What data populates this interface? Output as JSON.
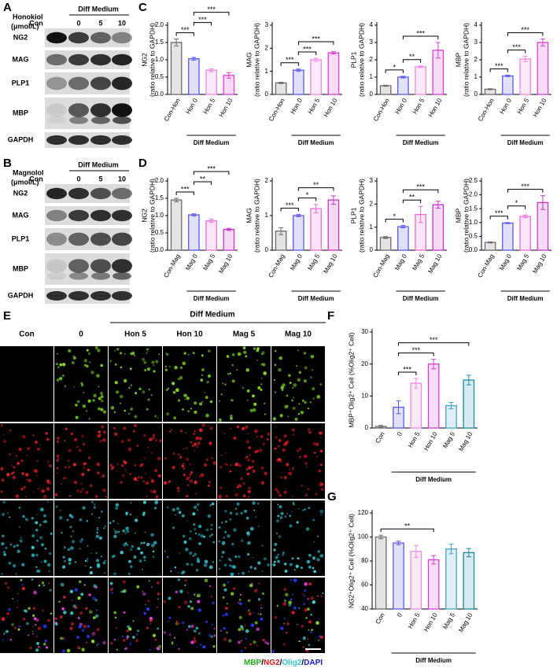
{
  "panel_labels": [
    "A",
    "B",
    "C",
    "D",
    "E",
    "F",
    "G"
  ],
  "blots": [
    {
      "agent": "Honokiol",
      "unit": "(μmol/L)",
      "group_label": "Diff Medium",
      "lanes": [
        "Con",
        "0",
        "5",
        "10"
      ],
      "rows": [
        "NG2",
        "MAG",
        "PLP1",
        "MBP",
        "GAPDH"
      ]
    },
    {
      "agent": "Magnolol",
      "unit": "(μmol/L)",
      "group_label": "Diff Medium",
      "lanes": [
        "Con",
        "0",
        "5",
        "10"
      ],
      "rows": [
        "NG2",
        "MAG",
        "PLP1",
        "MBP",
        "GAPDH"
      ]
    }
  ],
  "microscopy": {
    "group_label": "Diff Medium",
    "columns": [
      "Con",
      "0",
      "Hon 5",
      "Hon 10",
      "Mag 5",
      "Mag 10"
    ],
    "legend": [
      {
        "text": "MBP",
        "color": "#22b022"
      },
      {
        "text": "NG2",
        "color": "#e01b1b"
      },
      {
        "text": "Olig2",
        "color": "#2cc6cc"
      },
      {
        "text": "DAPI",
        "color": "#1a1ad0"
      }
    ],
    "legend_separator": "/"
  },
  "chart_data": [
    {
      "type": "bar",
      "ylabel": [
        "NG2",
        "(ratio relative to GAPDH)"
      ],
      "categories": [
        "Con-Hon",
        "Hon 0",
        "Hon 5",
        "Hon 10"
      ],
      "values": [
        1.5,
        1.03,
        0.7,
        0.55
      ],
      "errors": [
        0.1,
        0.04,
        0.04,
        0.08
      ],
      "colors": [
        "#6b6b6b",
        "#5b5bf0",
        "#f08ae0",
        "#d93fd6"
      ],
      "ylim": [
        0,
        2
      ],
      "yticks": [
        {
          "value": 0,
          "label": "0.0"
        },
        0.5,
        {
          "value": 1,
          "label": "1.0"
        },
        1.5,
        {
          "value": 2,
          "label": "2.0"
        }
      ],
      "group_label": "Diff Medium",
      "group_span": [
        1,
        3
      ],
      "significance": [
        {
          "pair": [
            0,
            1
          ],
          "label": "***"
        },
        {
          "pair": [
            1,
            2
          ],
          "label": "***"
        },
        {
          "pair": [
            1,
            3
          ],
          "label": "***"
        }
      ]
    },
    {
      "type": "bar",
      "ylabel": [
        "MAG",
        "(ratio relative to GAPDH)"
      ],
      "categories": [
        "Con-Hon",
        "Hon 0",
        "Hon 5",
        "Hon 10"
      ],
      "values": [
        0.5,
        1.05,
        1.5,
        1.8
      ],
      "errors": [
        0.03,
        0.05,
        0.07,
        0.05
      ],
      "colors": [
        "#6b6b6b",
        "#5b5bf0",
        "#f08ae0",
        "#d93fd6"
      ],
      "ylim": [
        0,
        3
      ],
      "yticks": [
        0,
        1,
        2,
        3
      ],
      "group_label": "Diff Medium",
      "group_span": [
        1,
        3
      ],
      "significance": [
        {
          "pair": [
            0,
            1
          ],
          "label": "***"
        },
        {
          "pair": [
            1,
            2
          ],
          "label": "***"
        },
        {
          "pair": [
            1,
            3
          ],
          "label": "***"
        }
      ]
    },
    {
      "type": "bar",
      "ylabel": [
        "PLP1",
        "(ratio relative to GAPDH)"
      ],
      "categories": [
        "Con-Hon",
        "Hon 0",
        "Hon 5",
        "Hon 10"
      ],
      "values": [
        0.5,
        1.0,
        1.6,
        2.55
      ],
      "errors": [
        0.03,
        0.05,
        0.05,
        0.45
      ],
      "colors": [
        "#6b6b6b",
        "#5b5bf0",
        "#f08ae0",
        "#d93fd6"
      ],
      "ylim": [
        0,
        4
      ],
      "yticks": [
        0,
        1,
        2,
        3,
        4
      ],
      "group_label": "Diff Medium",
      "group_span": [
        1,
        3
      ],
      "significance": [
        {
          "pair": [
            0,
            1
          ],
          "label": "*"
        },
        {
          "pair": [
            1,
            2
          ],
          "label": "**"
        },
        {
          "pair": [
            1,
            3
          ],
          "label": "***"
        }
      ]
    },
    {
      "type": "bar",
      "ylabel": [
        "MBP",
        "(ratio relative to GAPDH)"
      ],
      "categories": [
        "Con-Hon",
        "Hon 0",
        "Hon 5",
        "Hon 10"
      ],
      "values": [
        0.3,
        1.07,
        2.05,
        3.0
      ],
      "errors": [
        0.03,
        0.04,
        0.15,
        0.2
      ],
      "colors": [
        "#6b6b6b",
        "#5b5bf0",
        "#f08ae0",
        "#d93fd6"
      ],
      "ylim": [
        0,
        4
      ],
      "yticks": [
        0,
        1,
        2,
        3,
        4
      ],
      "group_label": "Diff Medium",
      "group_span": [
        1,
        3
      ],
      "significance": [
        {
          "pair": [
            0,
            1
          ],
          "label": "***"
        },
        {
          "pair": [
            1,
            2
          ],
          "label": "***"
        },
        {
          "pair": [
            1,
            3
          ],
          "label": "***"
        }
      ]
    },
    {
      "type": "bar",
      "ylabel": [
        "NG2",
        "(ratio relative to GAPDH)"
      ],
      "categories": [
        "Con-Mag",
        "Mag 0",
        "Mag 5",
        "Mag 10"
      ],
      "values": [
        1.45,
        1.02,
        0.85,
        0.6
      ],
      "errors": [
        0.05,
        0.03,
        0.05,
        0.03
      ],
      "colors": [
        "#6b6b6b",
        "#5b5bf0",
        "#e96fd5",
        "#c935c8"
      ],
      "ylim": [
        0,
        2
      ],
      "yticks": [
        {
          "value": 0,
          "label": "0.0"
        },
        0.5,
        {
          "value": 1,
          "label": "1.0"
        },
        1.5,
        {
          "value": 2,
          "label": "2.0"
        }
      ],
      "group_label": "Diff Medium",
      "group_span": [
        1,
        3
      ],
      "significance": [
        {
          "pair": [
            0,
            1
          ],
          "label": "***"
        },
        {
          "pair": [
            1,
            2
          ],
          "label": "**"
        },
        {
          "pair": [
            1,
            3
          ],
          "label": "***"
        }
      ]
    },
    {
      "type": "bar",
      "ylabel": [
        "MAG",
        "(ratio relative to GAPDH)"
      ],
      "categories": [
        "Con-Mag",
        "Mag 0",
        "Mag 5",
        "Mag 10"
      ],
      "values": [
        0.55,
        1.0,
        1.2,
        1.45
      ],
      "errors": [
        0.1,
        0.03,
        0.12,
        0.12
      ],
      "colors": [
        "#6b6b6b",
        "#5b5bf0",
        "#e96fd5",
        "#c935c8"
      ],
      "ylim": [
        0,
        2
      ],
      "yticks": [
        0,
        1,
        2
      ],
      "group_label": "Diff Medium",
      "group_span": [
        1,
        3
      ],
      "significance": [
        {
          "pair": [
            0,
            1
          ],
          "label": "***"
        },
        {
          "pair": [
            1,
            2
          ],
          "label": "*"
        },
        {
          "pair": [
            1,
            3
          ],
          "label": "**"
        }
      ]
    },
    {
      "type": "bar",
      "ylabel": [
        "PLP1",
        "(ratio relative to GAPDH)"
      ],
      "categories": [
        "Con-Mag",
        "Mag 0",
        "Mag 5",
        "Mag 10"
      ],
      "values": [
        0.55,
        1.02,
        1.55,
        1.97
      ],
      "errors": [
        0.04,
        0.05,
        0.35,
        0.15
      ],
      "colors": [
        "#6b6b6b",
        "#5b5bf0",
        "#e96fd5",
        "#c935c8"
      ],
      "ylim": [
        0,
        3
      ],
      "yticks": [
        0,
        1,
        2,
        3
      ],
      "group_label": "Diff Medium",
      "group_span": [
        1,
        3
      ],
      "significance": [
        {
          "pair": [
            0,
            1
          ],
          "label": "*"
        },
        {
          "pair": [
            1,
            2
          ],
          "label": "**"
        },
        {
          "pair": [
            1,
            3
          ],
          "label": "***"
        }
      ]
    },
    {
      "type": "bar",
      "ylabel": [
        "MBP",
        "(ratio relative to GAPDH)"
      ],
      "categories": [
        "Con-Mag",
        "Mag 0",
        "Mag 5",
        "Mag 10"
      ],
      "values": [
        0.28,
        0.98,
        1.22,
        1.72
      ],
      "errors": [
        0.02,
        0.02,
        0.05,
        0.25
      ],
      "colors": [
        "#6b6b6b",
        "#5b5bf0",
        "#e96fd5",
        "#c935c8"
      ],
      "ylim": [
        0,
        2.5
      ],
      "yticks": [
        {
          "value": 0,
          "label": "0.0"
        },
        0.5,
        {
          "value": 1,
          "label": "1.0"
        },
        1.5,
        {
          "value": 2,
          "label": "2.0"
        },
        2.5
      ],
      "group_label": "Diff Medium",
      "group_span": [
        1,
        3
      ],
      "significance": [
        {
          "pair": [
            0,
            1
          ],
          "label": "***"
        },
        {
          "pair": [
            1,
            2
          ],
          "label": "*"
        },
        {
          "pair": [
            1,
            3
          ],
          "label": "***"
        }
      ]
    },
    {
      "type": "bar",
      "ylabel": [
        "MBP⁺Olig2⁺ Cell (%Olig2⁺ Cell)"
      ],
      "categories": [
        "Con",
        "0",
        "Hon 5",
        "Hon 10",
        "Mag 5",
        "Mag 10"
      ],
      "values": [
        0.5,
        6.5,
        14,
        20,
        7,
        15
      ],
      "errors": [
        0.3,
        2,
        1.5,
        1.5,
        1,
        1.5
      ],
      "colors": [
        "#6b6b6b",
        "#5b5bf0",
        "#f08ae0",
        "#d93fd6",
        "#4aa3c7",
        "#1f8aa5"
      ],
      "ylim": [
        0,
        30
      ],
      "yticks": [
        0,
        10,
        20,
        30
      ],
      "group_label": "Diff Medium",
      "group_span": [
        1,
        5
      ],
      "significance": [
        {
          "pair": [
            1,
            2
          ],
          "label": "***"
        },
        {
          "pair": [
            1,
            3
          ],
          "label": "***"
        },
        {
          "pair": [
            1,
            5
          ],
          "label": "***"
        }
      ]
    },
    {
      "type": "bar",
      "ylabel": [
        "NG2⁺Olig2⁺ Cell (%Olig2⁺ Cell)"
      ],
      "categories": [
        "Con",
        "0",
        "Hon 5",
        "Hon 10",
        "Mag 5",
        "Mag 10"
      ],
      "values": [
        100,
        95,
        88,
        81,
        90,
        87
      ],
      "errors": [
        1.5,
        1.5,
        5,
        3.5,
        4,
        3.5
      ],
      "colors": [
        "#6b6b6b",
        "#5b5bf0",
        "#f08ae0",
        "#d93fd6",
        "#4aa3c7",
        "#1f8aa5"
      ],
      "ylim": [
        40,
        120
      ],
      "yticks": [
        40,
        60,
        80,
        100,
        120
      ],
      "group_label": "Diff Medium",
      "group_span": [
        1,
        5
      ],
      "significance": [
        {
          "pair": [
            0,
            3
          ],
          "label": "**"
        }
      ]
    }
  ]
}
